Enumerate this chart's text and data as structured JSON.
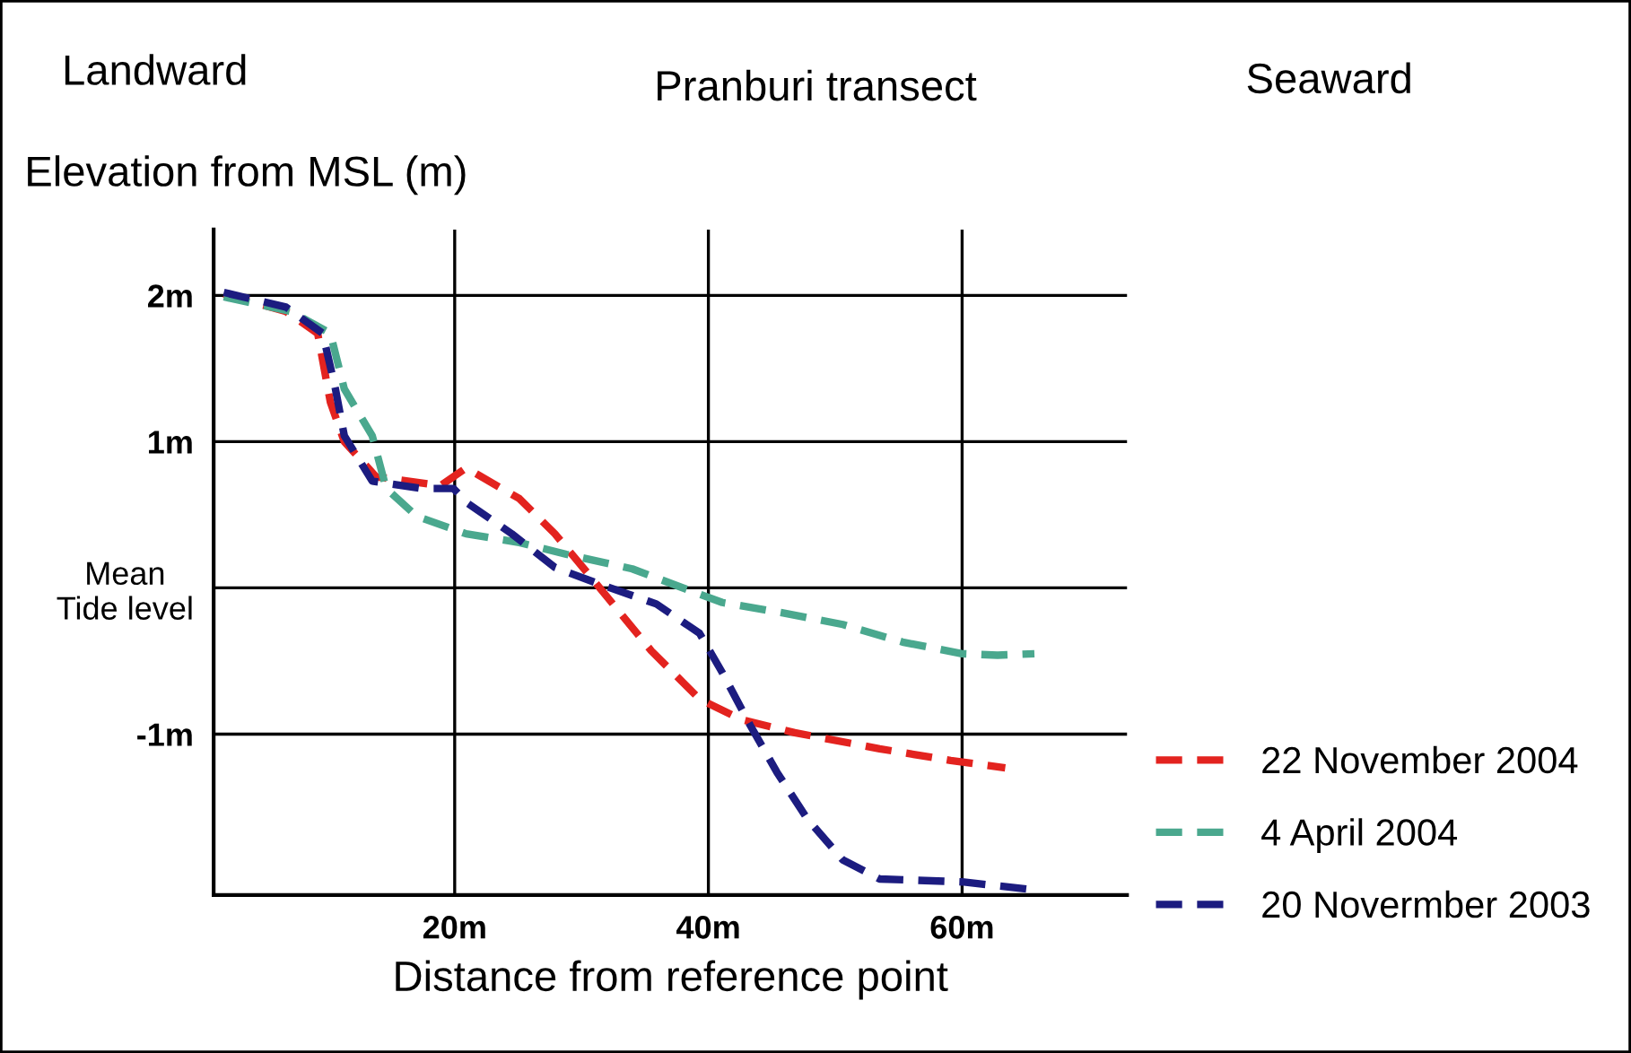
{
  "chart_data": {
    "type": "line",
    "title": "Pranburi transect",
    "annotations": [
      "Landward",
      "Seaward"
    ],
    "xlabel": "Distance from reference point",
    "ylabel": "Elevation from MSL (m)",
    "xlim": [
      1,
      73
    ],
    "ylim": [
      -2.1,
      2.45
    ],
    "xticks": [
      {
        "value": 20,
        "label": "20m"
      },
      {
        "value": 40,
        "label": "40m"
      },
      {
        "value": 60,
        "label": "60m"
      }
    ],
    "yticks": [
      {
        "value": 2,
        "label": "2m"
      },
      {
        "value": 1,
        "label": "1m"
      },
      {
        "value": 0,
        "label": "Mean\nTide level"
      },
      {
        "value": -1,
        "label": "-1m"
      }
    ],
    "grid": true,
    "legend": "right",
    "line_style": "dashed",
    "marker": "none",
    "series": [
      {
        "name": "22 November 2004",
        "color": "#e3231f",
        "x": [
          1.8,
          6.7,
          9.2,
          10.2,
          11.3,
          13.8,
          18.9,
          20.9,
          25.1,
          27.9,
          30.2,
          35.5,
          39.3,
          42.6,
          46.8,
          53.5,
          59.1,
          63.4
        ],
        "values": [
          2.01,
          1.89,
          1.74,
          1.27,
          1.0,
          0.76,
          0.7,
          0.82,
          0.61,
          0.37,
          0.13,
          -0.43,
          -0.76,
          -0.9,
          -0.99,
          -1.1,
          -1.18,
          -1.23
        ]
      },
      {
        "name": "4 April 2004",
        "color": "#4aa88e",
        "x": [
          1.8,
          7.1,
          10.2,
          11.3,
          13.5,
          14.6,
          17.0,
          20.9,
          25.1,
          28.8,
          34.0,
          38.3,
          41.1,
          45.8,
          50.6,
          55.3,
          60.0,
          62.8,
          65.7
        ],
        "values": [
          1.99,
          1.89,
          1.74,
          1.36,
          1.04,
          0.68,
          0.49,
          0.37,
          0.31,
          0.23,
          0.13,
          -0.01,
          -0.1,
          -0.17,
          -0.25,
          -0.37,
          -0.45,
          -0.46,
          -0.45
        ]
      },
      {
        "name": "20 Novermber 2003",
        "color": "#1c1c80",
        "x": [
          1.8,
          6.7,
          9.6,
          10.6,
          11.3,
          13.5,
          17.4,
          19.9,
          21.0,
          24.5,
          27.9,
          31.6,
          35.9,
          39.3,
          41.1,
          43.3,
          45.4,
          47.8,
          50.6,
          53.5,
          60.0,
          65.2
        ],
        "values": [
          2.02,
          1.92,
          1.74,
          1.36,
          1.04,
          0.73,
          0.68,
          0.68,
          0.58,
          0.37,
          0.14,
          0.02,
          -0.11,
          -0.31,
          -0.58,
          -0.94,
          -1.26,
          -1.58,
          -1.86,
          -1.99,
          -2.01,
          -2.06
        ]
      }
    ]
  }
}
